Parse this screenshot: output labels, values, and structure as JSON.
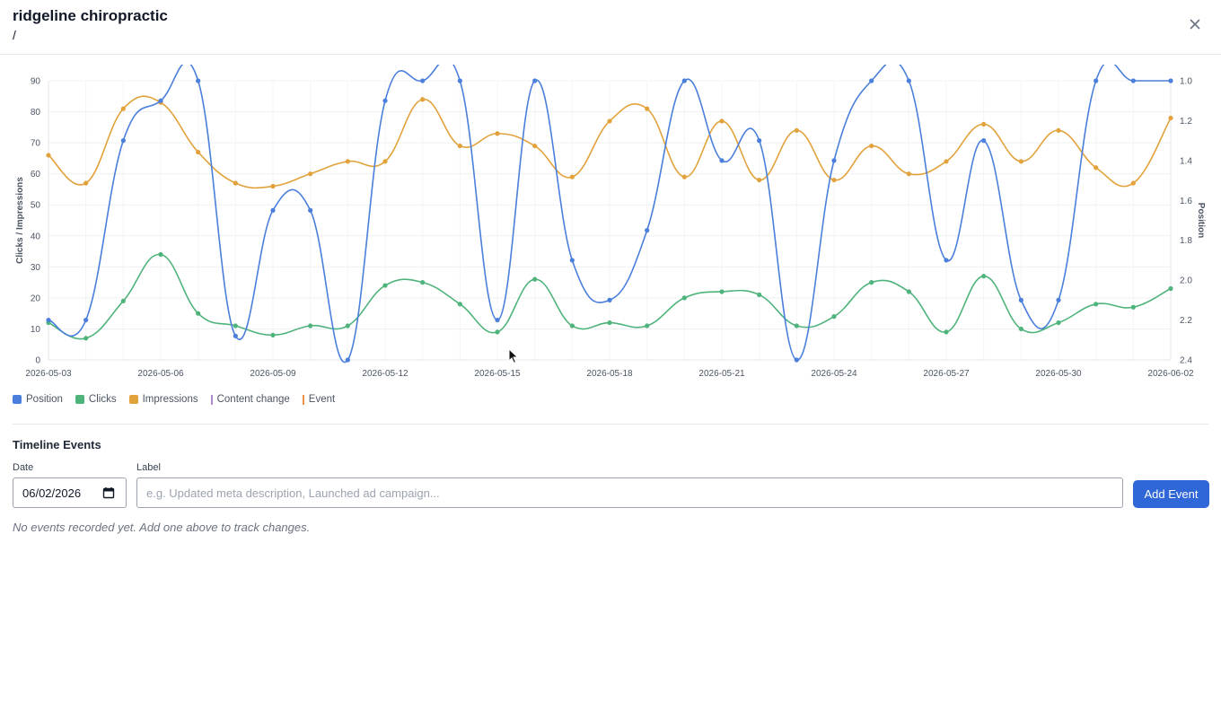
{
  "header": {
    "title": "ridgeline chiropractic",
    "path": "/"
  },
  "chart_data": {
    "type": "line",
    "x": [
      "2026-05-03",
      "2026-05-04",
      "2026-05-05",
      "2026-05-06",
      "2026-05-07",
      "2026-05-08",
      "2026-05-09",
      "2026-05-10",
      "2026-05-11",
      "2026-05-12",
      "2026-05-13",
      "2026-05-14",
      "2026-05-15",
      "2026-05-16",
      "2026-05-17",
      "2026-05-18",
      "2026-05-19",
      "2026-05-20",
      "2026-05-21",
      "2026-05-22",
      "2026-05-23",
      "2026-05-24",
      "2026-05-25",
      "2026-05-26",
      "2026-05-27",
      "2026-05-28",
      "2026-05-29",
      "2026-05-30",
      "2026-05-31",
      "2026-06-01",
      "2026-06-02"
    ],
    "x_tick_labels": [
      "2026-05-03",
      "2026-05-06",
      "2026-05-09",
      "2026-05-12",
      "2026-05-15",
      "2026-05-18",
      "2026-05-21",
      "2026-05-24",
      "2026-05-27",
      "2026-05-30",
      "2026-06-02"
    ],
    "y_left_label": "Clicks / Impressions",
    "y_left_range": [
      0,
      90
    ],
    "y_left_ticks": [
      "0",
      "10",
      "20",
      "30",
      "40",
      "50",
      "60",
      "70",
      "80",
      "90"
    ],
    "y_right_label": "Position",
    "y_right_range": [
      1.0,
      2.4
    ],
    "y_right_reversed": true,
    "y_right_ticks": [
      "1.0",
      "1.2",
      "1.4",
      "1.6",
      "1.8",
      "2.0",
      "2.2",
      "2.4"
    ],
    "grid": true,
    "legend_position": "bottom-left",
    "series": [
      {
        "name": "Position",
        "axis": "right",
        "color": "#4a7fdc",
        "values": [
          2.2,
          2.2,
          1.3,
          1.1,
          1.0,
          2.28,
          1.65,
          1.65,
          2.4,
          1.1,
          1.0,
          1.0,
          2.2,
          1.0,
          1.9,
          2.1,
          1.75,
          1.0,
          1.4,
          1.3,
          2.4,
          1.4,
          1.0,
          1.0,
          1.9,
          1.3,
          2.1,
          2.1,
          1.0,
          1.0,
          1.0
        ]
      },
      {
        "name": "Clicks",
        "axis": "left",
        "color": "#4fb37c",
        "values": [
          12,
          7,
          19,
          34,
          15,
          11,
          8,
          11,
          11,
          24,
          25,
          18,
          9,
          26,
          11,
          12,
          11,
          20,
          22,
          21,
          11,
          14,
          25,
          22,
          9,
          27,
          10,
          12,
          18,
          17,
          23
        ]
      },
      {
        "name": "Impressions",
        "axis": "left",
        "color": "#e2a23b",
        "values": [
          66,
          57,
          81,
          83,
          67,
          57,
          56,
          60,
          64,
          64,
          84,
          69,
          73,
          69,
          59,
          77,
          81,
          59,
          77,
          58,
          74,
          58,
          69,
          60,
          64,
          76,
          64,
          74,
          62,
          57,
          78
        ]
      }
    ]
  },
  "legend": {
    "items": [
      {
        "label": "Position",
        "kind": "box",
        "color": "#4a7fdc"
      },
      {
        "label": "Clicks",
        "kind": "box",
        "color": "#4fb37c"
      },
      {
        "label": "Impressions",
        "kind": "box",
        "color": "#e2a23b"
      },
      {
        "label": "Content change",
        "kind": "line",
        "color": "#a78bca"
      },
      {
        "label": "Event",
        "kind": "line",
        "color": "#e8914f"
      }
    ]
  },
  "events": {
    "title": "Timeline Events",
    "date_label": "Date",
    "date_value": "06/02/2026",
    "label_label": "Label",
    "label_placeholder": "e.g. Updated meta description, Launched ad campaign...",
    "add_button": "Add Event",
    "empty_message": "No events recorded yet. Add one above to track changes."
  }
}
